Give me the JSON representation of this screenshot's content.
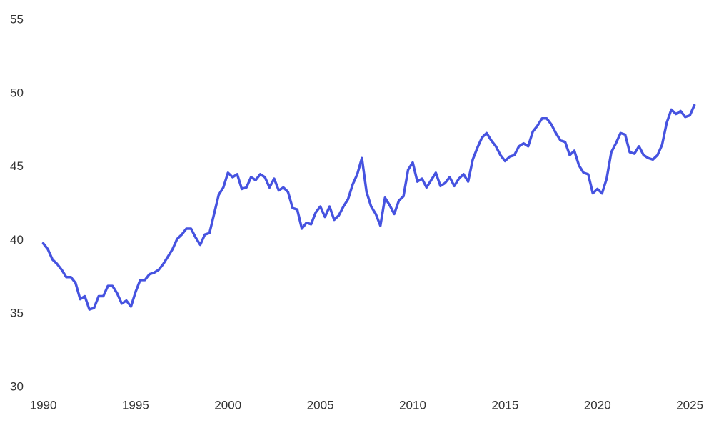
{
  "chart_data": {
    "type": "line",
    "color": "#4653e0",
    "x": [
      1990,
      1990.25,
      1990.5,
      1990.75,
      1991,
      1991.25,
      1991.5,
      1991.75,
      1992,
      1992.25,
      1992.5,
      1992.75,
      1993,
      1993.25,
      1993.5,
      1993.75,
      1994,
      1994.25,
      1994.5,
      1994.75,
      1995,
      1995.25,
      1995.5,
      1995.75,
      1996,
      1996.25,
      1996.5,
      1996.75,
      1997,
      1997.25,
      1997.5,
      1997.75,
      1998,
      1998.25,
      1998.5,
      1998.75,
      1999,
      1999.25,
      1999.5,
      1999.75,
      2000,
      2000.25,
      2000.5,
      2000.75,
      2001,
      2001.25,
      2001.5,
      2001.75,
      2002,
      2002.25,
      2002.5,
      2002.75,
      2003,
      2003.25,
      2003.5,
      2003.75,
      2004,
      2004.25,
      2004.5,
      2004.75,
      2005,
      2005.25,
      2005.5,
      2005.75,
      2006,
      2006.25,
      2006.5,
      2006.75,
      2007,
      2007.25,
      2007.5,
      2007.75,
      2008,
      2008.25,
      2008.5,
      2008.75,
      2009,
      2009.25,
      2009.5,
      2009.75,
      2010,
      2010.25,
      2010.5,
      2010.75,
      2011,
      2011.25,
      2011.5,
      2011.75,
      2012,
      2012.25,
      2012.5,
      2012.75,
      2013,
      2013.25,
      2013.5,
      2013.75,
      2014,
      2014.25,
      2014.5,
      2014.75,
      2015,
      2015.25,
      2015.5,
      2015.75,
      2016,
      2016.25,
      2016.5,
      2016.75,
      2017,
      2017.25,
      2017.5,
      2017.75,
      2018,
      2018.25,
      2018.5,
      2018.75,
      2019,
      2019.25,
      2019.5,
      2019.75,
      2020,
      2020.25,
      2020.5,
      2020.75,
      2021,
      2021.25,
      2021.5,
      2021.75,
      2022,
      2022.25,
      2022.5,
      2022.75,
      2023,
      2023.25,
      2023.5,
      2023.75,
      2024,
      2024.25,
      2024.5,
      2024.75,
      2025,
      2025.25
    ],
    "values": [
      39.8,
      39.4,
      38.7,
      38.4,
      38.0,
      37.5,
      37.5,
      37.1,
      36.0,
      36.2,
      35.3,
      35.4,
      36.2,
      36.2,
      36.9,
      36.9,
      36.4,
      35.7,
      35.9,
      35.5,
      36.5,
      37.3,
      37.3,
      37.7,
      37.8,
      38.0,
      38.4,
      38.9,
      39.4,
      40.1,
      40.4,
      40.8,
      40.8,
      40.2,
      39.7,
      40.4,
      40.5,
      41.8,
      43.1,
      43.6,
      44.6,
      44.3,
      44.5,
      43.5,
      43.6,
      44.3,
      44.1,
      44.5,
      44.3,
      43.6,
      44.2,
      43.4,
      43.6,
      43.3,
      42.2,
      42.1,
      40.8,
      41.2,
      41.1,
      41.9,
      42.3,
      41.6,
      42.3,
      41.4,
      41.7,
      42.3,
      42.8,
      43.8,
      44.5,
      45.6,
      43.3,
      42.3,
      41.8,
      41.0,
      42.9,
      42.4,
      41.8,
      42.7,
      43.0,
      44.8,
      45.3,
      44.0,
      44.2,
      43.6,
      44.1,
      44.6,
      43.7,
      43.9,
      44.3,
      43.7,
      44.2,
      44.5,
      44.0,
      45.5,
      46.3,
      47.0,
      47.3,
      46.8,
      46.4,
      45.8,
      45.4,
      45.7,
      45.8,
      46.4,
      46.6,
      46.4,
      47.4,
      47.8,
      48.3,
      48.3,
      47.9,
      47.3,
      46.8,
      46.7,
      45.8,
      46.1,
      45.1,
      44.6,
      44.5,
      43.2,
      43.5,
      43.2,
      44.2,
      46.0,
      46.6,
      47.3,
      47.2,
      46.0,
      45.9,
      46.4,
      45.8,
      45.6,
      45.5,
      45.8,
      46.5,
      48.0,
      48.9,
      48.6,
      48.8,
      48.4,
      48.5,
      49.2
    ],
    "xlim": [
      1989.4,
      2026
    ],
    "xticks": [
      1990,
      1995,
      2000,
      2005,
      2010,
      2015,
      2020,
      2025
    ],
    "ylim": [
      30,
      55
    ],
    "yticks": [
      30,
      35,
      40,
      45,
      50,
      55
    ]
  }
}
